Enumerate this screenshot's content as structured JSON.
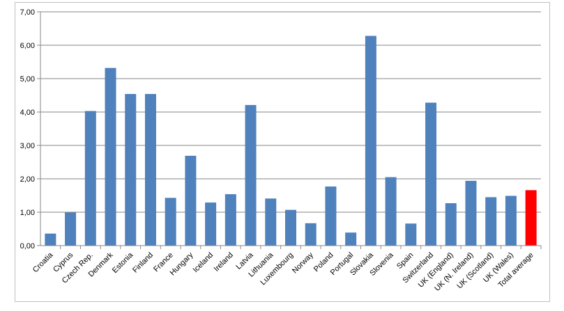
{
  "chart_data": {
    "type": "bar",
    "categories": [
      "Croatia",
      "Cyprus",
      "Czech Rep.",
      "Denmark",
      "Estonia",
      "Finland",
      "France",
      "Hungary",
      "Iceland",
      "Ireland",
      "Latvia",
      "Lithuania",
      "Luxembourg",
      "Norway",
      "Poland",
      "Portugal",
      "Slovakia",
      "Slovenia",
      "Spain",
      "Switzerland",
      "UK (England)",
      "UK (N. Ireland)",
      "UK (Scotland)",
      "UK (Wales)",
      "Total average"
    ],
    "values": [
      0.36,
      0.99,
      4.03,
      5.32,
      4.54,
      4.54,
      1.43,
      2.69,
      1.29,
      1.54,
      4.21,
      1.41,
      1.07,
      0.67,
      1.77,
      0.39,
      6.28,
      2.05,
      0.66,
      4.28,
      1.27,
      1.94,
      1.45,
      1.49,
      1.66
    ],
    "ylim": [
      0,
      7
    ],
    "yticks": [
      "0,00",
      "1,00",
      "2,00",
      "3,00",
      "4,00",
      "5,00",
      "6,00",
      "7,00"
    ],
    "grid": true,
    "colors": {
      "bar": "#4f81bd",
      "highlight": "#ff0000",
      "grid": "#868686"
    },
    "highlight_category": "Total average"
  }
}
